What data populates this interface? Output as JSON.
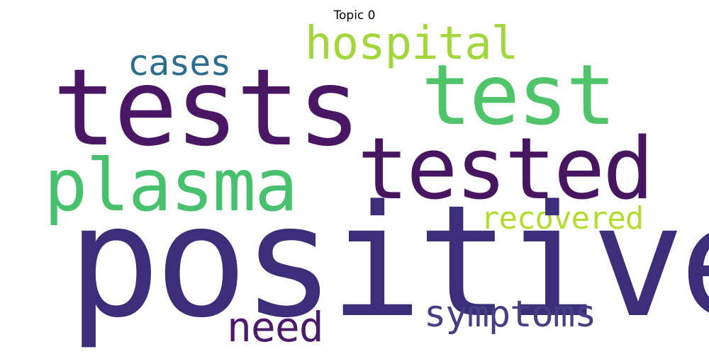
{
  "title": "Topic 0",
  "words": {
    "positive": {
      "text": "positive",
      "color": "#3d2e79"
    },
    "tests": {
      "text": "tests",
      "color": "#4a1764"
    },
    "tested": {
      "text": "tested",
      "color": "#471660"
    },
    "test": {
      "text": "test",
      "color": "#4fc46a"
    },
    "plasma": {
      "text": "plasma",
      "color": "#48c16e"
    },
    "hospital": {
      "text": "hospital",
      "color": "#a2d63a"
    },
    "symptoms": {
      "text": "symptoms",
      "color": "#453f84"
    },
    "need": {
      "text": "need",
      "color": "#4c1a6b"
    },
    "cases": {
      "text": "cases",
      "color": "#2d6e8e"
    },
    "recovered": {
      "text": "recovered",
      "color": "#b2dc2f"
    }
  }
}
